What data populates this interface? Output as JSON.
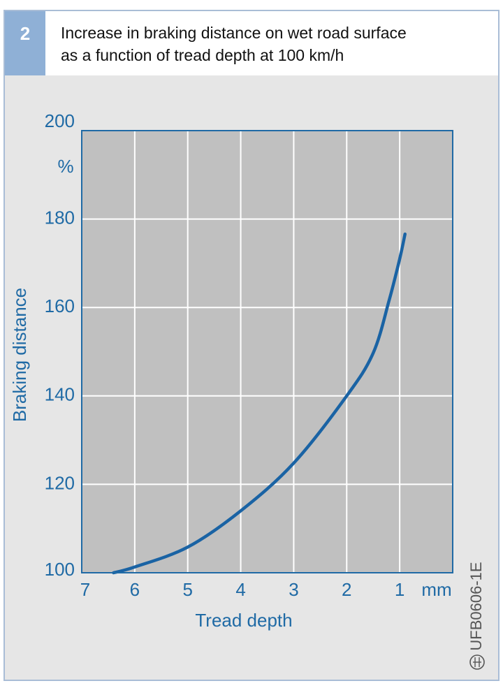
{
  "chart_data": {
    "type": "line",
    "figure_number": "2",
    "title": [
      "Increase in braking distance on wet road surface",
      "as a function of tread depth at 100 km/h"
    ],
    "x_label": "Tread depth",
    "x_unit": "mm",
    "y_label": "Braking distance",
    "y_unit": "%",
    "code": "UFB0606-1E",
    "x": [
      6.4,
      6,
      5,
      4,
      3,
      2,
      1.5,
      1.2,
      1,
      0.9
    ],
    "series": [
      {
        "name": "Braking distance",
        "color": "#1a63a4",
        "values": [
          100,
          101.3,
          105.8,
          114,
          124.8,
          140,
          149.7,
          161.6,
          171,
          176.6
        ]
      }
    ],
    "xlim": [
      7,
      0
    ],
    "xticks": [
      7,
      6,
      5,
      4,
      3,
      2,
      1
    ],
    "ylim": [
      100,
      200
    ],
    "yticks": [
      100,
      120,
      140,
      160,
      180,
      200
    ],
    "grid": true
  }
}
